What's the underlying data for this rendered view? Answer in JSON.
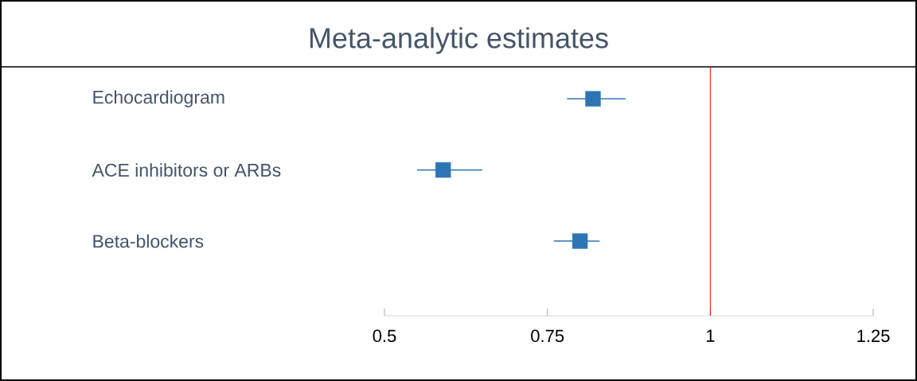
{
  "chart_data": {
    "type": "scatter",
    "title": "Meta-analytic estimates",
    "orientation": "horizontal",
    "categories": [
      "Echocardiogram",
      "ACE inhibitors or ARBs",
      "Beta-blockers"
    ],
    "values": [
      0.82,
      0.59,
      0.8
    ],
    "errors": [
      [
        0.78,
        0.87
      ],
      [
        0.55,
        0.65
      ],
      [
        0.76,
        0.83
      ]
    ],
    "color": "#2e75b6",
    "marker": "square",
    "xlim": [
      0.5,
      1.25
    ],
    "xticks": [
      0.5,
      0.75,
      1,
      1.25
    ],
    "ref_lines": [
      {
        "axis": "x",
        "value": 1,
        "color": "#ff0000"
      }
    ]
  }
}
